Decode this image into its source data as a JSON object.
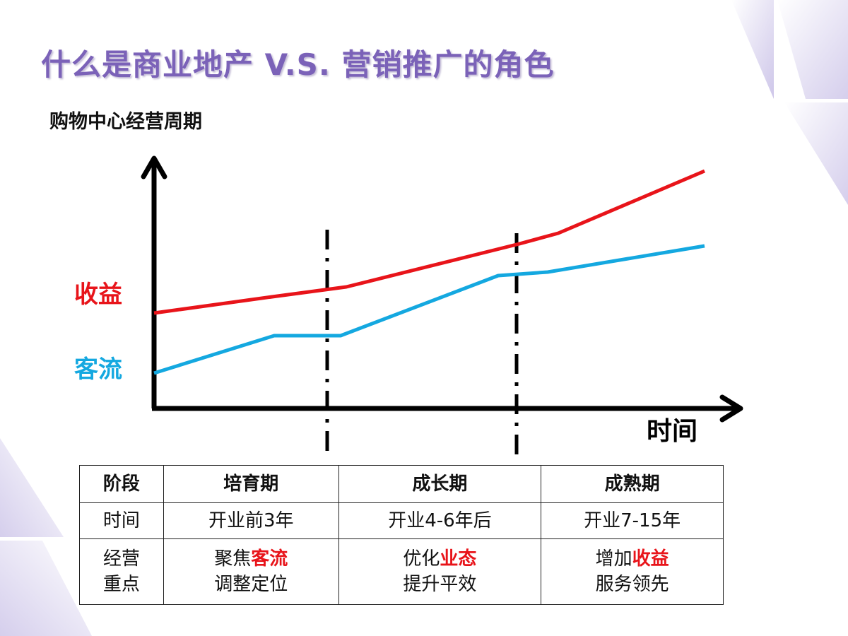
{
  "title": "什么是商业地产 V.S. 营销推广的角色",
  "subtitle": "购物中心经营周期",
  "chart_data": {
    "type": "line",
    "series": [
      {
        "name": "收益",
        "color": "#e8141a"
      },
      {
        "name": "客流",
        "color": "#14a8e0"
      }
    ],
    "xlabel": "时间"
  },
  "table": {
    "headers": [
      "阶段",
      "培育期",
      "成长期",
      "成熟期"
    ],
    "time_row": {
      "label": "时间",
      "values": [
        "开业前3年",
        "开业4-6年后",
        "开业7-15年"
      ]
    },
    "focus_row": {
      "label_line1": "经营",
      "label_line2": "重点",
      "cells": [
        {
          "prefix": "聚焦",
          "highlight": "客流",
          "line2": "调整定位"
        },
        {
          "prefix": "优化",
          "highlight": "业态",
          "line2": "提升平效"
        },
        {
          "prefix": "增加",
          "highlight": "收益",
          "line2": "服务领先"
        }
      ]
    }
  },
  "colors": {
    "title": "#7b62b8",
    "revenue": "#e8141a",
    "traffic": "#14a8e0",
    "decoration": "#d8d0ec"
  }
}
